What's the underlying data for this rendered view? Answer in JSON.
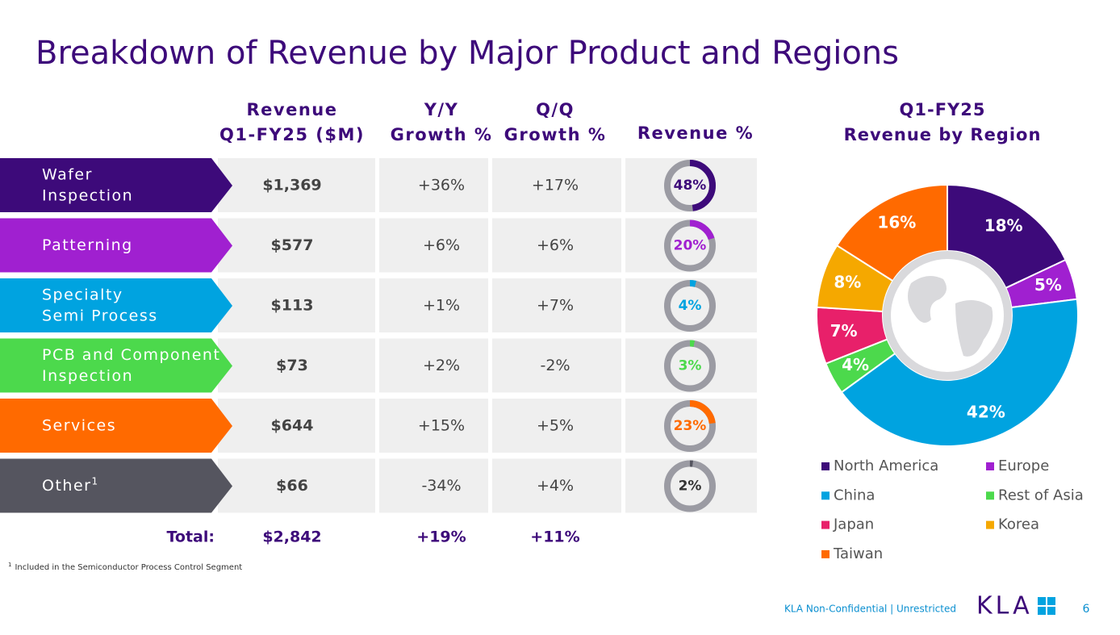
{
  "title": "Breakdown of Revenue by Major Product and Regions",
  "table": {
    "headers": [
      [
        "Revenue",
        "Q1-FY25 ($M)"
      ],
      [
        "Y/Y",
        "Growth %"
      ],
      [
        "Q/Q",
        "Growth %"
      ],
      [
        "Revenue %"
      ]
    ],
    "rows": [
      {
        "label": [
          "Wafer",
          "Inspection"
        ],
        "color": "#3d0a7a",
        "revenue": "$1,369",
        "yy": "+36%",
        "qq": "+17%",
        "pct": 48,
        "pct_label": "48%"
      },
      {
        "label": [
          "Patterning"
        ],
        "color": "#a020d0",
        "revenue": "$577",
        "yy": "+6%",
        "qq": "+6%",
        "pct": 20,
        "pct_label": "20%"
      },
      {
        "label": [
          "Specialty",
          "Semi Process"
        ],
        "color": "#00a3e0",
        "revenue": "$113",
        "yy": "+1%",
        "qq": "+7%",
        "pct": 4,
        "pct_label": "4%"
      },
      {
        "label": [
          "PCB and Component",
          "Inspection"
        ],
        "color": "#4cd94c",
        "revenue": "$73",
        "yy": "+2%",
        "qq": "-2%",
        "pct": 3,
        "pct_label": "3%"
      },
      {
        "label": [
          "Services"
        ],
        "color": "#ff6a00",
        "revenue": "$644",
        "yy": "+15%",
        "qq": "+5%",
        "pct": 23,
        "pct_label": "23%"
      },
      {
        "label": [
          "Other"
        ],
        "superscript": "1",
        "color": "#55555f",
        "revenue": "$66",
        "yy": "-34%",
        "qq": "+4%",
        "pct": 2,
        "pct_label": "2%"
      }
    ],
    "total": {
      "label": "Total:",
      "revenue": "$2,842",
      "yy": "+19%",
      "qq": "+11%"
    }
  },
  "footnote": {
    "marker": "1",
    "text": "Included in the Semiconductor Process Control Segment"
  },
  "chart_data": {
    "type": "donut",
    "title": [
      "Q1-FY25",
      "Revenue by Region"
    ],
    "categories": [
      "North America",
      "Europe",
      "China",
      "Rest of Asia",
      "Japan",
      "Korea",
      "Taiwan"
    ],
    "values": [
      18,
      5,
      42,
      4,
      7,
      8,
      16
    ],
    "value_labels": [
      "18%",
      "5%",
      "42%",
      "4%",
      "7%",
      "8%",
      "16%"
    ],
    "colors": [
      "#3d0a7a",
      "#a020d0",
      "#00a3e0",
      "#4cd94c",
      "#e8206a",
      "#f5a800",
      "#ff6a00"
    ]
  },
  "footer": {
    "classification": "KLA Non-Confidential | Unrestricted",
    "logo": "KLA",
    "page": "6"
  }
}
